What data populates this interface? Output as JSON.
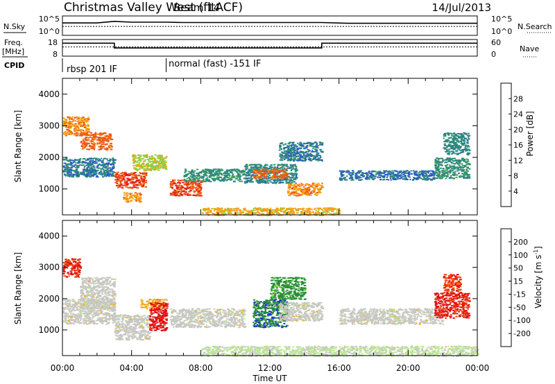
{
  "header": {
    "title": "Christmas Valley West (fitACF)",
    "beam": "Beam 14",
    "date": "14/Jul/2013"
  },
  "param_panels": {
    "nsky_label": "N.Sky",
    "nsky_ticks": [
      "10^5",
      "10^0"
    ],
    "nsearch_label": "N.Search",
    "nsearch_ticks": [
      "10^5",
      "10^0"
    ],
    "freq_label_line1": "Freq.",
    "freq_label_line2": "[MHz]",
    "freq_ticks": [
      "18",
      "8"
    ],
    "nave_label": "Nave",
    "nave_ticks": [
      "60",
      "0"
    ],
    "cpid_label": "CPID",
    "cpid_segments": [
      {
        "text": "rbsp 201 IF",
        "start_hour": 0.0
      },
      {
        "text": "normal (fast) -151 IF",
        "start_hour": 6.0
      }
    ]
  },
  "x_axis": {
    "label": "Time UT",
    "tick_labels": [
      "00:00",
      "04:00",
      "08:00",
      "12:00",
      "16:00",
      "20:00",
      "00:00"
    ],
    "tick_hours": [
      0,
      4,
      8,
      12,
      16,
      20,
      24
    ]
  },
  "colors": {
    "power_scale": [
      "#1f1fd6",
      "#2a5ac4",
      "#2d8a7a",
      "#46a84a",
      "#8fce3c",
      "#f5a011",
      "#ee5a12",
      "#e01b12"
    ],
    "velocity_scale": [
      "#1a2fd8",
      "#2b8c3a",
      "#6cd23c",
      "#b8ed8a",
      "#c8c8c2",
      "#f0b21c",
      "#f28a12",
      "#ef4a12",
      "#e01010"
    ]
  },
  "chart_data": [
    {
      "type": "line",
      "title": "N.Sky / N.Search",
      "x_range_hours": [
        0,
        24
      ],
      "series": [
        {
          "name": "N.Sky",
          "x": [
            0,
            2,
            3,
            4,
            6,
            7,
            10,
            12,
            15,
            16.5,
            20,
            24
          ],
          "values": [
            3.2,
            3.2,
            3.6,
            3.4,
            3.4,
            3.3,
            3.3,
            3.3,
            3.3,
            3.1,
            3.1,
            3.1
          ]
        },
        {
          "name": "N.Search",
          "x": [
            0,
            24
          ],
          "values": [
            2.3,
            2.3
          ]
        }
      ]
    },
    {
      "type": "line",
      "title": "Freq. / Nave",
      "x_range_hours": [
        0,
        24
      ],
      "series": [
        {
          "name": "Freq.",
          "x": [
            0,
            3,
            3,
            15,
            15,
            24
          ],
          "values": [
            15.8,
            15.8,
            12.9,
            12.9,
            15.8,
            15.8
          ]
        },
        {
          "name": "Nave",
          "x": [
            0,
            24
          ],
          "values": [
            33,
            33
          ]
        }
      ]
    },
    {
      "type": "heatmap",
      "title": "Power",
      "ylabel": "Slant Range [km]",
      "xlabel": "Time UT",
      "y_ticks": [
        1000,
        2000,
        3000,
        4000
      ],
      "ylim": [
        180,
        4500
      ],
      "colorbar_label": "Power [dB]",
      "colorbar_ticks": [
        4,
        8,
        12,
        16,
        20,
        24,
        28
      ],
      "clim": [
        0,
        30
      ],
      "regions": [
        {
          "t": [
            0.0,
            1.5
          ],
          "r": [
            2700,
            3300
          ],
          "value": 22
        },
        {
          "t": [
            1.0,
            2.8
          ],
          "r": [
            2250,
            2800
          ],
          "value": 24
        },
        {
          "t": [
            0.0,
            3.0
          ],
          "r": [
            1400,
            2000
          ],
          "value": 8
        },
        {
          "t": [
            3.0,
            4.8
          ],
          "r": [
            1050,
            1550
          ],
          "value": 26
        },
        {
          "t": [
            3.5,
            4.5
          ],
          "r": [
            600,
            900
          ],
          "value": 22
        },
        {
          "t": [
            4.0,
            6.0
          ],
          "r": [
            1600,
            2100
          ],
          "value": 18
        },
        {
          "t": [
            6.2,
            8.0
          ],
          "r": [
            800,
            1300
          ],
          "value": 26
        },
        {
          "t": [
            7.0,
            10.5
          ],
          "r": [
            1250,
            1650
          ],
          "value": 10
        },
        {
          "t": [
            10.5,
            13.5
          ],
          "r": [
            1200,
            1800
          ],
          "value": 9
        },
        {
          "t": [
            11.0,
            13.0
          ],
          "r": [
            1350,
            1650
          ],
          "value": 24
        },
        {
          "t": [
            13.0,
            15.0
          ],
          "r": [
            800,
            1200
          ],
          "value": 22
        },
        {
          "t": [
            12.5,
            15.0
          ],
          "r": [
            1900,
            2500
          ],
          "value": 8
        },
        {
          "t": [
            16.0,
            21.5
          ],
          "r": [
            1300,
            1600
          ],
          "value": 7
        },
        {
          "t": [
            21.5,
            23.5
          ],
          "r": [
            1350,
            2000
          ],
          "value": 10
        },
        {
          "t": [
            22.0,
            23.5
          ],
          "r": [
            2100,
            2800
          ],
          "value": 9
        },
        {
          "t": [
            8.0,
            16.0
          ],
          "r": [
            180,
            420
          ],
          "value": 20
        }
      ]
    },
    {
      "type": "heatmap",
      "title": "Velocity",
      "ylabel": "Slant Range [km]",
      "xlabel": "Time UT",
      "y_ticks": [
        1000,
        2000,
        3000,
        4000
      ],
      "ylim": [
        180,
        4500
      ],
      "colorbar_label": "Velocity [m s-1]",
      "colorbar_ticks": [
        200,
        100,
        50,
        15,
        -15,
        -50,
        -100,
        -200
      ],
      "clim": [
        -250,
        250
      ],
      "regions": [
        {
          "t": [
            0.0,
            1.0
          ],
          "r": [
            2700,
            3300
          ],
          "value": -200
        },
        {
          "t": [
            1.0,
            3.0
          ],
          "r": [
            1700,
            2700
          ],
          "value": 0
        },
        {
          "t": [
            0.0,
            3.0
          ],
          "r": [
            1200,
            2000
          ],
          "value": 0
        },
        {
          "t": [
            3.0,
            5.0
          ],
          "r": [
            700,
            1500
          ],
          "value": 0
        },
        {
          "t": [
            4.5,
            6.0
          ],
          "r": [
            1700,
            2000
          ],
          "value": -60
        },
        {
          "t": [
            5.0,
            6.0
          ],
          "r": [
            1000,
            1900
          ],
          "value": -220
        },
        {
          "t": [
            6.2,
            10.5
          ],
          "r": [
            1100,
            1700
          ],
          "value": 0
        },
        {
          "t": [
            11.0,
            13.0
          ],
          "r": [
            1100,
            2000
          ],
          "value": 180
        },
        {
          "t": [
            12.0,
            14.0
          ],
          "r": [
            2000,
            2700
          ],
          "value": 160
        },
        {
          "t": [
            12.5,
            15.0
          ],
          "r": [
            1300,
            1900
          ],
          "value": 0
        },
        {
          "t": [
            16.0,
            22.0
          ],
          "r": [
            1200,
            1700
          ],
          "value": 0
        },
        {
          "t": [
            21.5,
            23.5
          ],
          "r": [
            1400,
            2200
          ],
          "value": -210
        },
        {
          "t": [
            22.0,
            23.0
          ],
          "r": [
            2200,
            2800
          ],
          "value": -180
        },
        {
          "t": [
            8.0,
            24.0
          ],
          "r": [
            180,
            500
          ],
          "value": 30
        }
      ]
    }
  ]
}
